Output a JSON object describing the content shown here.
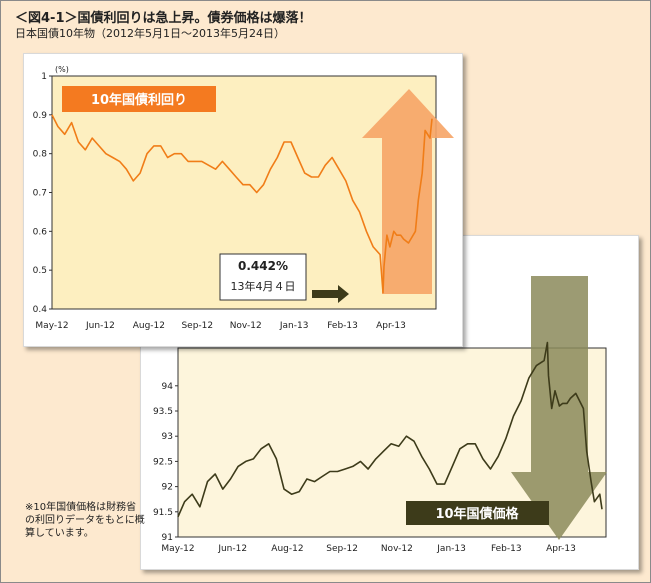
{
  "title": "＜図4-1＞国債利回りは急上昇。債券価格は爆落！",
  "subtitle": "日本国債10年物（2012年5月1日〜2013年5月24日）",
  "note": "※10年国債価格は財務省の利回りデータをもとに概算しています。",
  "colors": {
    "background": "#fde9cf",
    "yield_plot_bg": "#fdefc0",
    "price_plot_bg": "#fdf5dc",
    "yield_line": "#f07d18",
    "price_line": "#3d3b1a",
    "yield_label_bg": "#f47a20",
    "price_label_bg": "#3d3b1a",
    "up_arrow": "#f6a466",
    "down_arrow": "#8b8a5b"
  },
  "chart_data": [
    {
      "type": "line",
      "series": [
        {
          "name": "10年国債利回り",
          "x": [
            "2012-05-01",
            "2012-05-07",
            "2012-05-14",
            "2012-05-21",
            "2012-05-28",
            "2012-06-04",
            "2012-06-11",
            "2012-06-18",
            "2012-06-25",
            "2012-07-02",
            "2012-07-09",
            "2012-07-16",
            "2012-07-23",
            "2012-07-30",
            "2012-08-06",
            "2012-08-13",
            "2012-08-20",
            "2012-08-27",
            "2012-09-03",
            "2012-09-10",
            "2012-09-17",
            "2012-09-24",
            "2012-10-01",
            "2012-10-08",
            "2012-10-15",
            "2012-10-22",
            "2012-10-29",
            "2012-11-05",
            "2012-11-12",
            "2012-11-19",
            "2012-11-26",
            "2012-12-03",
            "2012-12-10",
            "2012-12-17",
            "2012-12-24",
            "2012-12-31",
            "2013-01-07",
            "2013-01-14",
            "2013-01-21",
            "2013-01-28",
            "2013-02-04",
            "2013-02-11",
            "2013-02-18",
            "2013-02-25",
            "2013-03-04",
            "2013-03-11",
            "2013-03-18",
            "2013-03-25",
            "2013-04-01",
            "2013-04-04",
            "2013-04-05",
            "2013-04-08",
            "2013-04-11",
            "2013-04-15",
            "2013-04-18",
            "2013-04-22",
            "2013-04-25",
            "2013-04-30",
            "2013-05-07",
            "2013-05-10",
            "2013-05-14",
            "2013-05-17",
            "2013-05-22",
            "2013-05-24"
          ],
          "y": [
            0.9,
            0.87,
            0.85,
            0.88,
            0.83,
            0.81,
            0.84,
            0.82,
            0.8,
            0.79,
            0.78,
            0.76,
            0.73,
            0.75,
            0.8,
            0.82,
            0.82,
            0.79,
            0.8,
            0.8,
            0.78,
            0.78,
            0.78,
            0.77,
            0.76,
            0.78,
            0.76,
            0.74,
            0.72,
            0.72,
            0.7,
            0.72,
            0.76,
            0.79,
            0.83,
            0.83,
            0.79,
            0.75,
            0.74,
            0.74,
            0.77,
            0.79,
            0.76,
            0.73,
            0.68,
            0.65,
            0.6,
            0.56,
            0.54,
            0.442,
            0.51,
            0.59,
            0.56,
            0.6,
            0.59,
            0.59,
            0.58,
            0.57,
            0.6,
            0.68,
            0.75,
            0.86,
            0.84,
            0.89
          ]
        }
      ],
      "ylim": [
        0.4,
        1.0
      ],
      "y_ticks": [
        "0.4",
        "0.5",
        "0.6",
        "0.7",
        "0.8",
        "0.9",
        "1"
      ],
      "y_unit": "(%)",
      "x_ticks": [
        "May-12",
        "Jun-12",
        "Aug-12",
        "Sep-12",
        "Nov-12",
        "Jan-13",
        "Feb-13",
        "Apr-13"
      ],
      "label": "10年国債利回り",
      "annotation": {
        "value": "0.442%",
        "date": "13年4月４日"
      }
    },
    {
      "type": "line",
      "series": [
        {
          "name": "10年国債価格",
          "x": [
            "2012-05-01",
            "2012-05-07",
            "2012-05-14",
            "2012-05-21",
            "2012-05-28",
            "2012-06-04",
            "2012-06-11",
            "2012-06-18",
            "2012-06-25",
            "2012-07-02",
            "2012-07-09",
            "2012-07-16",
            "2012-07-23",
            "2012-07-30",
            "2012-08-06",
            "2012-08-13",
            "2012-08-20",
            "2012-08-27",
            "2012-09-03",
            "2012-09-10",
            "2012-09-17",
            "2012-09-24",
            "2012-10-01",
            "2012-10-08",
            "2012-10-15",
            "2012-10-22",
            "2012-10-29",
            "2012-11-05",
            "2012-11-12",
            "2012-11-19",
            "2012-11-26",
            "2012-12-03",
            "2012-12-10",
            "2012-12-17",
            "2012-12-24",
            "2012-12-31",
            "2013-01-07",
            "2013-01-14",
            "2013-01-21",
            "2013-01-28",
            "2013-02-04",
            "2013-02-11",
            "2013-02-18",
            "2013-02-25",
            "2013-03-04",
            "2013-03-11",
            "2013-03-18",
            "2013-03-25",
            "2013-04-01",
            "2013-04-04",
            "2013-04-05",
            "2013-04-08",
            "2013-04-11",
            "2013-04-15",
            "2013-04-18",
            "2013-04-22",
            "2013-04-25",
            "2013-04-30",
            "2013-05-07",
            "2013-05-10",
            "2013-05-14",
            "2013-05-17",
            "2013-05-22",
            "2013-05-24"
          ],
          "y": [
            91.4,
            91.7,
            91.85,
            91.6,
            92.1,
            92.25,
            91.95,
            92.15,
            92.4,
            92.5,
            92.55,
            92.75,
            92.85,
            92.55,
            91.95,
            91.85,
            91.9,
            92.15,
            92.1,
            92.2,
            92.3,
            92.3,
            92.35,
            92.4,
            92.5,
            92.35,
            92.55,
            92.7,
            92.85,
            92.8,
            93.0,
            92.9,
            92.6,
            92.35,
            92.05,
            92.05,
            92.4,
            92.75,
            92.85,
            92.85,
            92.55,
            92.35,
            92.6,
            92.95,
            93.4,
            93.7,
            94.15,
            94.4,
            94.5,
            94.86,
            94.2,
            93.55,
            93.9,
            93.6,
            93.65,
            93.65,
            93.75,
            93.85,
            93.55,
            92.7,
            92.1,
            91.7,
            91.85,
            91.55
          ]
        }
      ],
      "ylim": [
        91.0,
        94.75
      ],
      "y_ticks": [
        "91",
        "91.5",
        "92",
        "92.5",
        "93",
        "93.5",
        "94"
      ],
      "x_ticks": [
        "May-12",
        "Jun-12",
        "Aug-12",
        "Sep-12",
        "Nov-12",
        "Jan-13",
        "Feb-13",
        "Apr-13"
      ],
      "label": "10年国債価格"
    }
  ]
}
